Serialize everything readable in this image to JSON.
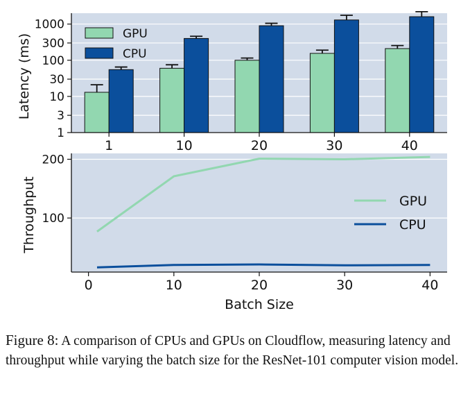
{
  "chart_data": [
    {
      "type": "bar",
      "ylabel": "Latency (ms)",
      "yscale": "log",
      "ylim": [
        1,
        2000
      ],
      "yticks": [
        1,
        3,
        10,
        30,
        100,
        300,
        1000
      ],
      "ytick_labels": [
        "1",
        "3",
        "10",
        "30",
        "100",
        "300",
        "1000"
      ],
      "categories": [
        "1",
        "10",
        "20",
        "30",
        "40"
      ],
      "series": [
        {
          "name": "GPU",
          "color": "#92d7b0",
          "values": [
            13,
            60,
            100,
            155,
            210
          ],
          "err_upper": [
            21,
            75,
            115,
            190,
            255
          ]
        },
        {
          "name": "CPU",
          "color": "#0b4f9c",
          "values": [
            55,
            400,
            900,
            1300,
            1600
          ],
          "err_upper": [
            65,
            460,
            1050,
            1750,
            2200
          ]
        }
      ],
      "legend": "top-left",
      "grid": "y"
    },
    {
      "type": "line",
      "xlabel": "Batch Size",
      "ylabel": "Throughput",
      "xlim": [
        -2,
        42
      ],
      "ylim": [
        8,
        210
      ],
      "xticks": [
        0,
        10,
        20,
        30,
        40
      ],
      "yticks": [
        100,
        200
      ],
      "series": [
        {
          "name": "GPU",
          "color": "#92d7b0",
          "x": [
            1,
            10,
            20,
            30,
            40
          ],
          "y": [
            77,
            171,
            201,
            200,
            204
          ]
        },
        {
          "name": "CPU",
          "color": "#0b4f9c",
          "x": [
            1,
            10,
            20,
            30,
            40
          ],
          "y": [
            16,
            20,
            21,
            19.5,
            20
          ]
        }
      ],
      "legend": "right",
      "grid": "y"
    }
  ],
  "caption": {
    "label": "Figure 8:",
    "text": "A comparison of CPUs and GPUs on Cloudflow, measuring latency and throughput while varying the batch size for the ResNet-101 computer vision model."
  }
}
